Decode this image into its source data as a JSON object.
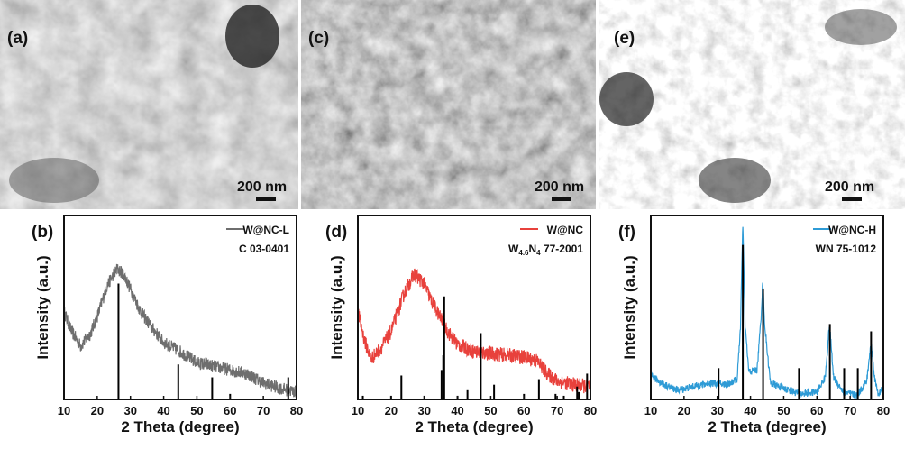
{
  "sem_panels": [
    {
      "label": "(a)",
      "scale": "200 nm"
    },
    {
      "label": "(c)",
      "scale": "200 nm"
    },
    {
      "label": "(e)",
      "scale": "200 nm"
    }
  ],
  "chart_data": [
    {
      "type": "line",
      "panel": "(b)",
      "xlabel": "2 Theta (degree)",
      "ylabel": "Intensity (a.u.)",
      "xlim": [
        10,
        80
      ],
      "ylim": [
        0,
        100
      ],
      "xticks": [
        10,
        20,
        30,
        40,
        50,
        60,
        70,
        80
      ],
      "grid": false,
      "legend": "top-right",
      "series": [
        {
          "name": "W@NC-L",
          "color": "#6e6e6e",
          "noise": 3.5,
          "points": [
            [
              10,
              48
            ],
            [
              12,
              38
            ],
            [
              15,
              29
            ],
            [
              18,
              36
            ],
            [
              20,
              45
            ],
            [
              23,
              62
            ],
            [
              26,
              71
            ],
            [
              28,
              68
            ],
            [
              30,
              60
            ],
            [
              33,
              48
            ],
            [
              36,
              40
            ],
            [
              40,
              31
            ],
            [
              45,
              26
            ],
            [
              50,
              20
            ],
            [
              55,
              18
            ],
            [
              60,
              16
            ],
            [
              65,
              14
            ],
            [
              70,
              9
            ],
            [
              75,
              6
            ],
            [
              80,
              4
            ]
          ]
        }
      ],
      "reference": {
        "name": "C 03-0401",
        "peaks": [
          [
            26.4,
            63
          ],
          [
            44.4,
            19
          ],
          [
            54.6,
            12
          ],
          [
            60,
            3
          ],
          [
            77.5,
            12
          ]
        ]
      }
    },
    {
      "type": "line",
      "panel": "(d)",
      "xlabel": "2 Theta (degree)",
      "ylabel": "Intensity (a.u.)",
      "xlim": [
        10,
        80
      ],
      "ylim": [
        0,
        100
      ],
      "xticks": [
        10,
        20,
        30,
        40,
        50,
        60,
        70,
        80
      ],
      "grid": false,
      "legend": "top-right",
      "series": [
        {
          "name": "W@NC",
          "color": "#e8413c",
          "noise": 4,
          "points": [
            [
              10,
              48
            ],
            [
              12,
              32
            ],
            [
              14,
              22
            ],
            [
              17,
              28
            ],
            [
              20,
              37
            ],
            [
              24,
              58
            ],
            [
              27,
              68
            ],
            [
              30,
              63
            ],
            [
              32,
              54
            ],
            [
              35,
              44
            ],
            [
              37,
              37
            ],
            [
              40,
              30
            ],
            [
              45,
              26
            ],
            [
              50,
              25
            ],
            [
              55,
              24
            ],
            [
              60,
              23
            ],
            [
              64,
              21
            ],
            [
              67,
              14
            ],
            [
              70,
              10
            ],
            [
              75,
              8
            ],
            [
              80,
              7
            ]
          ]
        }
      ],
      "reference": {
        "name": "W4.6N4 77-2001",
        "name_main": "W",
        "sub1": "4.6",
        "mid": "N",
        "sub2": "4",
        "suffix": " 77-2001",
        "peaks": [
          [
            11.5,
            2
          ],
          [
            20,
            2
          ],
          [
            23.1,
            13
          ],
          [
            30,
            2
          ],
          [
            35.2,
            16
          ],
          [
            35.7,
            24
          ],
          [
            36.0,
            56
          ],
          [
            40,
            2
          ],
          [
            43,
            5
          ],
          [
            47,
            36
          ],
          [
            51,
            8
          ],
          [
            60,
            3
          ],
          [
            64.5,
            11
          ],
          [
            69.5,
            3
          ],
          [
            72,
            2
          ],
          [
            76,
            7
          ],
          [
            76.5,
            4
          ],
          [
            79,
            14
          ]
        ]
      }
    },
    {
      "type": "line",
      "panel": "(f)",
      "xlabel": "2 Theta (degree)",
      "ylabel": "Intensity (a.u.)",
      "xlim": [
        10,
        80
      ],
      "ylim": [
        0,
        100
      ],
      "xticks": [
        10,
        20,
        30,
        40,
        50,
        60,
        70,
        80
      ],
      "grid": false,
      "legend": "top-right",
      "series": [
        {
          "name": "W@NC-H",
          "color": "#2e9bd6",
          "noise": 2,
          "points": [
            [
              10,
              13
            ],
            [
              14,
              8
            ],
            [
              18,
              5
            ],
            [
              23,
              7
            ],
            [
              28,
              9
            ],
            [
              33,
              8
            ],
            [
              36,
              11
            ],
            [
              37,
              40
            ],
            [
              37.7,
              96
            ],
            [
              38.4,
              40
            ],
            [
              39.5,
              15
            ],
            [
              42,
              16
            ],
            [
              43.2,
              45
            ],
            [
              43.7,
              64
            ],
            [
              44.3,
              40
            ],
            [
              46,
              9
            ],
            [
              50,
              6
            ],
            [
              55,
              3
            ],
            [
              60,
              4
            ],
            [
              62.5,
              12
            ],
            [
              63.8,
              41
            ],
            [
              65,
              12
            ],
            [
              68,
              4
            ],
            [
              72,
              2
            ],
            [
              75,
              10
            ],
            [
              76.3,
              31
            ],
            [
              77.5,
              10
            ],
            [
              78.5,
              3
            ],
            [
              80,
              6
            ]
          ]
        }
      ],
      "reference": {
        "name": "WN 75-1012",
        "peaks": [
          [
            30.4,
            17
          ],
          [
            37.7,
            84
          ],
          [
            43.8,
            60
          ],
          [
            54.6,
            17
          ],
          [
            63.9,
            41
          ],
          [
            68.2,
            17
          ],
          [
            72.3,
            17
          ],
          [
            76.3,
            37
          ]
        ]
      }
    }
  ]
}
